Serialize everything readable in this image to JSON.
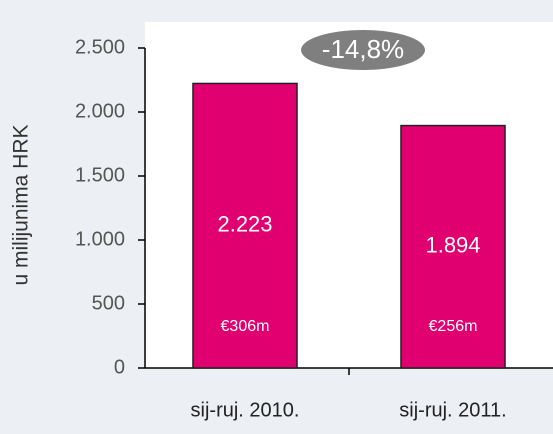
{
  "chart_data": {
    "type": "bar",
    "ylabel": "u milijunima HRK",
    "annotation": "-14,8%",
    "categories": [
      "sij-ruj. 2010.",
      "sij-ruj. 2011."
    ],
    "values": [
      2223,
      1894
    ],
    "value_labels": [
      "2.223",
      "1.894"
    ],
    "sub_labels": [
      "€306m",
      "€256m"
    ],
    "color": "#e0006f",
    "ylim": [
      0,
      2500
    ],
    "yticks": [
      0,
      500,
      {
        "value": 1000,
        "label": "1.000"
      },
      {
        "value": 1500,
        "label": "1.500"
      },
      {
        "value": 2000,
        "label": "2.000"
      },
      {
        "value": 2500,
        "label": "2.500"
      }
    ],
    "grid": false
  }
}
